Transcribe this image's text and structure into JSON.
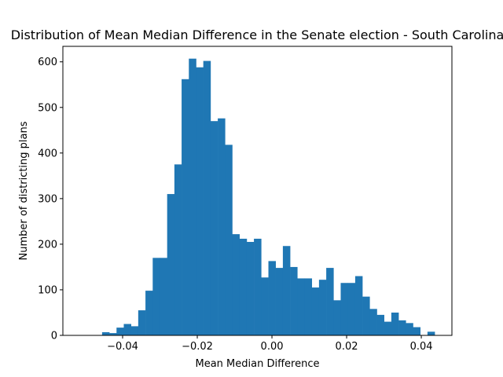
{
  "chart_data": {
    "type": "histogram",
    "title": "Distribution of Mean Median Difference in the Senate election - South Carolina",
    "x_label": "Mean Median Difference",
    "y_label": "Number of districting plans",
    "color": "#1f77b4",
    "bins": [
      -0.0455,
      -0.04356,
      -0.04163,
      -0.03969,
      -0.03775,
      -0.03582,
      -0.03388,
      -0.03194,
      -0.03001,
      -0.02807,
      -0.02613,
      -0.0242,
      -0.02226,
      -0.02032,
      -0.01839,
      -0.01645,
      -0.01451,
      -0.01257,
      -0.01064,
      -0.0087,
      -0.00676,
      -0.00483,
      -0.00289,
      -0.00095,
      0.00098,
      0.00292,
      0.00486,
      0.00679,
      0.00873,
      0.01067,
      0.0126,
      0.01454,
      0.01648,
      0.01841,
      0.02035,
      0.02229,
      0.02422,
      0.02616,
      0.0281,
      0.03003,
      0.03197,
      0.03391,
      0.03584,
      0.03778,
      0.03972,
      0.04165,
      0.04359
    ],
    "values": [
      7,
      5,
      17,
      25,
      20,
      55,
      98,
      170,
      170,
      310,
      375,
      562,
      607,
      588,
      602,
      470,
      476,
      418,
      222,
      212,
      205,
      212,
      127,
      163,
      148,
      196,
      150,
      125,
      125,
      105,
      122,
      148,
      77,
      115,
      115,
      130,
      85,
      58,
      45,
      30,
      50,
      33,
      27,
      18,
      0,
      8
    ],
    "xlim": [
      -0.056,
      0.0482
    ],
    "ylim": [
      0,
      634
    ],
    "xticks": [
      {
        "value": -0.04,
        "label": "−0.04"
      },
      {
        "value": -0.02,
        "label": "−0.02"
      },
      {
        "value": 0,
        "label": "0.00"
      },
      {
        "value": 0.02,
        "label": "0.02"
      },
      {
        "value": 0.04,
        "label": "0.04"
      }
    ],
    "yticks": [
      0,
      100,
      200,
      300,
      400,
      500,
      600
    ]
  }
}
